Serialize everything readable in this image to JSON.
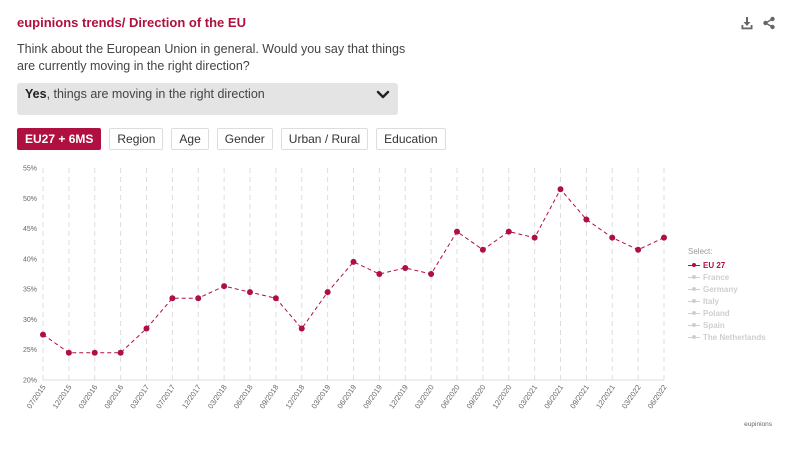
{
  "header": {
    "title": "eupinions trends/ Direction of the EU",
    "question": "Think about the European Union in general. Would you say that things are currently moving in the right direction?"
  },
  "dropdown": {
    "selected_bold": "Yes",
    "selected_rest": ", things are moving in the right direction"
  },
  "tabs": [
    {
      "label": "EU27 + 6MS",
      "active": true
    },
    {
      "label": "Region",
      "active": false
    },
    {
      "label": "Age",
      "active": false
    },
    {
      "label": "Gender",
      "active": false
    },
    {
      "label": "Urban / Rural",
      "active": false
    },
    {
      "label": "Education",
      "active": false
    }
  ],
  "legend": {
    "title": "Select:",
    "items": [
      {
        "label": "EU 27",
        "active": true
      },
      {
        "label": "France",
        "active": false
      },
      {
        "label": "Germany",
        "active": false
      },
      {
        "label": "Italy",
        "active": false
      },
      {
        "label": "Poland",
        "active": false
      },
      {
        "label": "Spain",
        "active": false
      },
      {
        "label": "The Netherlands",
        "active": false
      }
    ]
  },
  "credit": "eupinions",
  "colors": {
    "accent": "#b0103f",
    "grid": "#dddddd",
    "inactive": "#cfcfcf"
  },
  "icons": [
    "download-icon",
    "share-icon",
    "chevron-down-icon"
  ],
  "chart_data": {
    "type": "line",
    "categories": [
      "07/2015",
      "12/2015",
      "03/2016",
      "08/2016",
      "03/2017",
      "07/2017",
      "12/2017",
      "03/2018",
      "06/2018",
      "09/2018",
      "12/2018",
      "03/2019",
      "06/2019",
      "09/2019",
      "12/2019",
      "03/2020",
      "06/2020",
      "09/2020",
      "12/2020",
      "03/2021",
      "06/2021",
      "09/2021",
      "12/2021",
      "03/2022",
      "06/2022"
    ],
    "series": [
      {
        "name": "EU 27",
        "values": [
          27.5,
          24.5,
          24.5,
          24.5,
          28.5,
          33.5,
          33.5,
          35.5,
          34.5,
          33.5,
          28.5,
          34.5,
          39.5,
          37.5,
          38.5,
          37.5,
          44.5,
          41.5,
          44.5,
          43.5,
          51.5,
          46.5,
          43.5,
          41.5,
          43.5
        ]
      }
    ],
    "yticks": [
      "20%",
      "25%",
      "30%",
      "35%",
      "40%",
      "45%",
      "50%",
      "55%"
    ],
    "ylim": [
      20,
      55
    ],
    "grid": "vertical dashed",
    "legend_position": "right"
  }
}
